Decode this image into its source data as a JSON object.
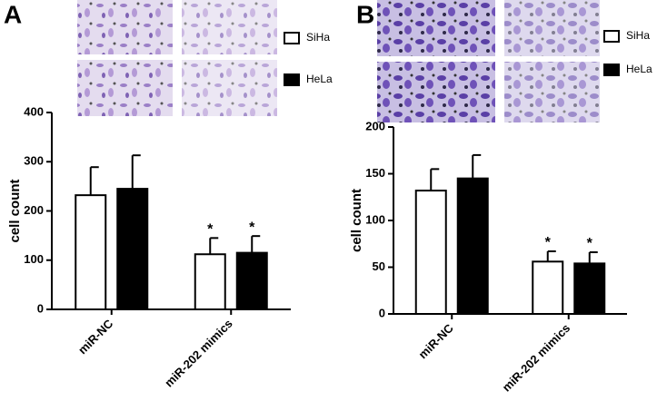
{
  "chart_data": [
    {
      "type": "bar",
      "label": "A",
      "ylabel": "cell count",
      "categories": [
        "miR-NC",
        "miR-202 mimics"
      ],
      "series": [
        {
          "name": "SiHa",
          "color": "#ffffff",
          "values": [
            232,
            112
          ],
          "errors": [
            57,
            33
          ]
        },
        {
          "name": "HeLa",
          "color": "#000000",
          "values": [
            245,
            115
          ],
          "errors": [
            68,
            34
          ]
        }
      ],
      "annotations": [
        "*",
        "*"
      ],
      "ylim": [
        0,
        400
      ],
      "yticks": [
        0,
        100,
        200,
        300,
        400
      ]
    },
    {
      "type": "bar",
      "label": "B",
      "ylabel": "cell count",
      "categories": [
        "miR-NC",
        "miR-202 mimics"
      ],
      "series": [
        {
          "name": "SiHa",
          "color": "#ffffff",
          "values": [
            132,
            56
          ],
          "errors": [
            23,
            11
          ]
        },
        {
          "name": "HeLa",
          "color": "#000000",
          "values": [
            145,
            54
          ],
          "errors": [
            25,
            12
          ]
        }
      ],
      "annotations": [
        "*",
        "*"
      ],
      "ylim": [
        0,
        200
      ],
      "yticks": [
        0,
        50,
        100,
        150,
        200
      ]
    }
  ]
}
